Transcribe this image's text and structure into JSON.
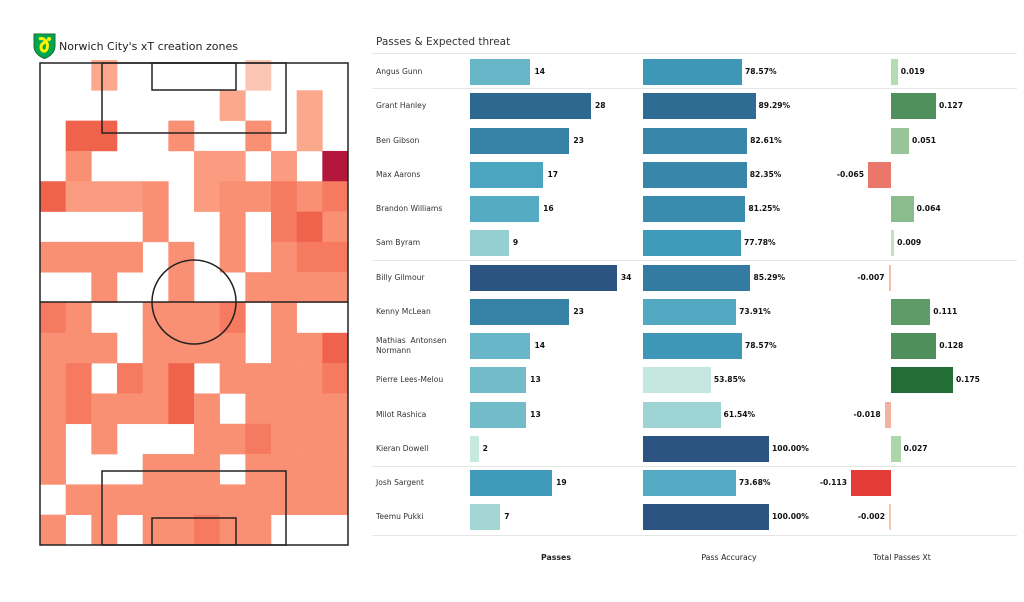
{
  "heatmap": {
    "title": "Norwich City's xT creation zones",
    "badge": "norwich-city-crest",
    "colors": {
      "1": "#fcc6b5",
      "2": "#fba88c",
      "2.5": "#fb9c80",
      "3": "#fa9073",
      "3.5": "#f57a60",
      "4": "#ef624c",
      "5": "#b3173b"
    }
  },
  "chart_data": [
    {
      "type": "heatmap",
      "title": "Norwich City's xT creation zones",
      "note_levels": "relative intensity 0 (none) to 5 (highest)",
      "grid": [
        [
          0,
          0,
          2,
          0,
          0,
          0,
          0,
          0,
          1,
          0,
          0,
          0
        ],
        [
          0,
          0,
          0,
          0,
          0,
          0,
          0,
          2,
          0,
          0,
          2,
          0
        ],
        [
          0,
          4,
          4,
          0,
          0,
          3,
          0,
          0,
          3,
          0,
          2,
          0
        ],
        [
          0,
          3,
          0,
          0,
          0,
          0,
          2.5,
          2.5,
          0,
          2.5,
          0,
          5
        ],
        [
          4,
          2.5,
          2.5,
          2.5,
          3,
          0,
          2.5,
          3,
          3,
          3.5,
          3,
          3.5
        ],
        [
          0,
          0,
          0,
          0,
          3,
          0,
          0,
          3,
          0,
          3.5,
          4,
          3
        ],
        [
          3,
          3,
          3,
          3,
          0,
          3,
          0,
          3,
          0,
          3,
          3.5,
          3.5
        ],
        [
          0,
          0,
          3,
          0,
          0,
          3,
          0,
          0,
          3,
          3,
          3,
          3
        ],
        [
          3.5,
          3,
          0,
          0,
          3,
          3,
          3,
          3.5,
          0,
          3,
          0,
          0
        ],
        [
          3,
          3,
          3,
          0,
          3,
          3,
          3,
          3,
          0,
          3,
          3,
          4
        ],
        [
          3,
          3.5,
          0,
          3.5,
          3,
          4,
          0,
          3,
          3,
          3,
          3,
          3.5
        ],
        [
          3,
          3.5,
          3,
          3,
          3,
          4,
          3,
          0,
          3,
          3,
          3,
          3
        ],
        [
          3,
          0,
          3,
          0,
          0,
          0,
          3,
          3,
          3.5,
          3,
          3,
          3
        ],
        [
          3,
          0,
          0,
          0,
          3,
          3,
          3,
          0,
          3,
          3,
          3,
          3
        ],
        [
          0,
          3,
          3,
          3,
          3,
          3,
          3,
          3,
          3,
          3,
          3,
          3
        ],
        [
          3,
          0,
          3,
          0,
          3,
          3,
          3.5,
          3,
          3,
          0,
          0,
          0
        ]
      ]
    },
    {
      "type": "bar",
      "title": "Passes & Expected threat",
      "columns": [
        "Passes",
        "Pass Accuracy",
        "Total Passes Xt"
      ],
      "players": [
        {
          "name": "Angus Gunn",
          "passes": 14,
          "pass_accuracy": "78.57%",
          "acc": 78.57,
          "xt": 0.019,
          "xt_label": "0.019",
          "group": 0
        },
        {
          "name": "Grant Hanley",
          "passes": 28,
          "pass_accuracy": "89.29%",
          "acc": 89.29,
          "xt": 0.127,
          "xt_label": "0.127",
          "group": 1
        },
        {
          "name": "Ben Gibson",
          "passes": 23,
          "pass_accuracy": "82.61%",
          "acc": 82.61,
          "xt": 0.051,
          "xt_label": "0.051",
          "group": 1
        },
        {
          "name": "Max Aarons",
          "passes": 17,
          "pass_accuracy": "82.35%",
          "acc": 82.35,
          "xt": -0.065,
          "xt_label": "-0.065",
          "group": 1
        },
        {
          "name": "Brandon Williams",
          "passes": 16,
          "pass_accuracy": "81.25%",
          "acc": 81.25,
          "xt": 0.064,
          "xt_label": "0.064",
          "group": 1
        },
        {
          "name": "Sam Byram",
          "passes": 9,
          "pass_accuracy": "77.78%",
          "acc": 77.78,
          "xt": 0.009,
          "xt_label": "0.009",
          "group": 1
        },
        {
          "name": "Billy Gilmour",
          "passes": 34,
          "pass_accuracy": "85.29%",
          "acc": 85.29,
          "xt": -0.007,
          "xt_label": "-0.007",
          "group": 2
        },
        {
          "name": "Kenny McLean",
          "passes": 23,
          "pass_accuracy": "73.91%",
          "acc": 73.91,
          "xt": 0.111,
          "xt_label": "0.111",
          "group": 2
        },
        {
          "name": "Mathias  Antonsen\nNormann",
          "passes": 14,
          "pass_accuracy": "78.57%",
          "acc": 78.57,
          "xt": 0.128,
          "xt_label": "0.128",
          "group": 2
        },
        {
          "name": "Pierre Lees-Melou",
          "passes": 13,
          "pass_accuracy": "53.85%",
          "acc": 53.85,
          "xt": 0.175,
          "xt_label": "0.175",
          "group": 2
        },
        {
          "name": "Milot Rashica",
          "passes": 13,
          "pass_accuracy": "61.54%",
          "acc": 61.54,
          "xt": -0.018,
          "xt_label": "-0.018",
          "group": 2
        },
        {
          "name": "Kieran Dowell",
          "passes": 2,
          "pass_accuracy": "100.00%",
          "acc": 100,
          "xt": 0.027,
          "xt_label": "0.027",
          "group": 2
        },
        {
          "name": "Josh Sargent",
          "passes": 19,
          "pass_accuracy": "73.68%",
          "acc": 73.68,
          "xt": -0.113,
          "xt_label": "-0.113",
          "group": 3
        },
        {
          "name": "Teemu Pukki",
          "passes": 7,
          "pass_accuracy": "100.00%",
          "acc": 100,
          "xt": -0.002,
          "xt_label": "-0.002",
          "group": 3
        }
      ]
    }
  ],
  "table": {
    "title": "Passes & Expected threat",
    "headers": {
      "passes": "Passes",
      "accuracy": "Pass Accuracy",
      "xt": "Total Passes Xt"
    }
  }
}
